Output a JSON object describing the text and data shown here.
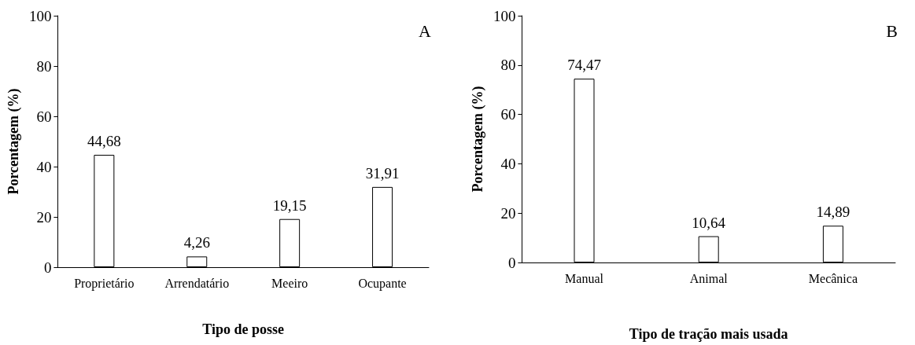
{
  "chart_data": [
    {
      "type": "bar",
      "categories": [
        "Proprietário",
        "Arrendatário",
        "Meeiro",
        "Ocupante"
      ],
      "values": [
        44.68,
        4.26,
        19.15,
        31.91
      ],
      "value_labels": [
        "44,68",
        "4,26",
        "19,15",
        "31,91"
      ],
      "color": "#ffffff",
      "xlabel": "Tipo de posse",
      "ylabel": "Porcentagem (%)",
      "ylim": [
        0,
        100
      ],
      "yticks": [
        0,
        20,
        40,
        60,
        80,
        100
      ],
      "annotations": [
        "A"
      ]
    },
    {
      "type": "bar",
      "categories": [
        "Manual",
        "Animal",
        "Mecânica"
      ],
      "values": [
        74.47,
        10.64,
        14.89
      ],
      "value_labels": [
        "74,47",
        "10,64",
        "14,89"
      ],
      "color": "#ffffff",
      "xlabel": "Tipo de tração mais usada",
      "ylabel": "Porcentagem (%)",
      "ylim": [
        0,
        100
      ],
      "yticks": [
        0,
        20,
        40,
        60,
        80,
        100
      ],
      "annotations": [
        "B"
      ]
    }
  ]
}
